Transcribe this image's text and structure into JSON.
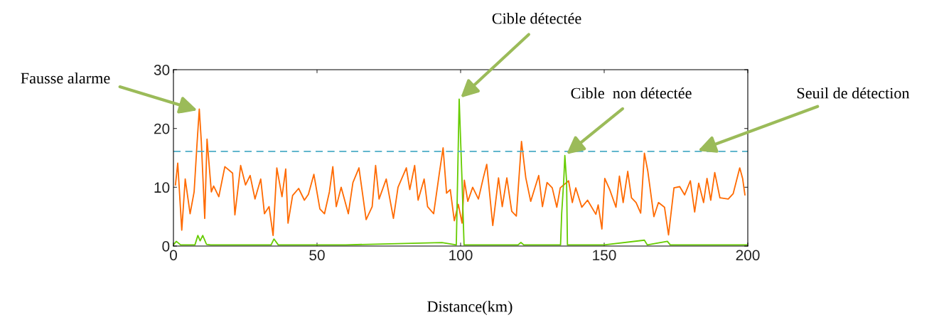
{
  "chart_data": {
    "type": "line",
    "xlabel": "Distance(km)",
    "xlim": [
      0,
      200
    ],
    "xticks": [
      0,
      50,
      100,
      150,
      200
    ],
    "ylim": [
      0,
      30
    ],
    "yticks": [
      0,
      10,
      20,
      30
    ],
    "grid": false,
    "legend": false,
    "line_style": "solid",
    "marker": "none",
    "series": [
      {
        "color": "#ff6a00",
        "x": [
          0.7,
          1.5,
          2.9,
          4.1,
          5.8,
          7.2,
          8.2,
          9.0,
          9.7,
          10.9,
          11.7,
          13.2,
          14.0,
          15.8,
          17.9,
          20.6,
          21.4,
          23.4,
          25.1,
          26.7,
          28.4,
          30.4,
          31.7,
          33.3,
          34.7,
          36.0,
          37.8,
          39.1,
          39.9,
          41.5,
          43.6,
          45.6,
          47.0,
          48.9,
          51.0,
          52.6,
          54.3,
          55.5,
          56.7,
          58.4,
          60.9,
          62.5,
          64.6,
          67.1,
          69.2,
          70.4,
          71.6,
          74.1,
          76.6,
          78.2,
          81.1,
          82.3,
          84.0,
          85.2,
          87.3,
          88.5,
          90.6,
          92.6,
          93.9,
          95.1,
          96.4,
          97.8,
          99.2,
          100.5,
          101.3,
          102.5,
          104.2,
          106.2,
          107.9,
          109.1,
          111.2,
          113.2,
          114.5,
          116.1,
          117.8,
          119.4,
          121.2,
          122.7,
          124.4,
          127.2,
          128.5,
          130.1,
          131.9,
          133.5,
          134.7,
          137.6,
          138.9,
          140.1,
          142.2,
          144.2,
          147.1,
          147.9,
          149.2,
          150.2,
          152.0,
          154.1,
          155.3,
          156.6,
          158.2,
          159.5,
          161.1,
          162.7,
          164.0,
          165.2,
          167.3,
          168.9,
          171.0,
          172.4,
          174.3,
          176.3,
          178.0,
          180.0,
          181.5,
          182.9,
          184.6,
          185.8,
          187.1,
          188.5,
          190.3,
          193.2,
          194.9,
          197.2,
          198.2,
          199.0
        ],
        "values": [
          10.4,
          14.1,
          2.7,
          11.4,
          5.5,
          9.2,
          17.3,
          23.3,
          17.8,
          4.7,
          18.2,
          9.2,
          10.2,
          8.4,
          13.5,
          12.4,
          5.3,
          13.7,
          10.4,
          12.0,
          8.0,
          11.4,
          5.5,
          6.7,
          1.8,
          13.3,
          8.4,
          13.1,
          3.9,
          8.6,
          9.8,
          7.8,
          8.8,
          12.2,
          6.3,
          5.5,
          9.2,
          13.5,
          6.7,
          10.0,
          5.5,
          10.8,
          13.3,
          4.5,
          6.7,
          13.7,
          8.0,
          11.4,
          4.7,
          10.0,
          13.3,
          9.6,
          13.7,
          7.8,
          11.4,
          6.7,
          5.5,
          12.4,
          16.7,
          9.0,
          9.6,
          4.3,
          7.1,
          3.9,
          11.2,
          7.6,
          10.0,
          8.0,
          11.6,
          13.9,
          3.5,
          11.6,
          6.7,
          11.6,
          5.9,
          5.1,
          17.8,
          11.6,
          7.6,
          12.0,
          6.7,
          10.8,
          9.9,
          6.6,
          9.9,
          11.1,
          7.4,
          9.9,
          6.6,
          7.8,
          5.4,
          7.0,
          2.9,
          11.5,
          9.5,
          6.6,
          11.9,
          7.4,
          12.7,
          8.2,
          7.4,
          5.6,
          15.8,
          12.7,
          5.0,
          7.4,
          6.6,
          1.9,
          9.9,
          10.1,
          8.7,
          11.1,
          5.8,
          10.7,
          7.4,
          11.5,
          7.8,
          12.5,
          8.2,
          8.0,
          8.9,
          13.3,
          11.5,
          8.7
        ]
      },
      {
        "color": "#66cc00",
        "x": [
          0,
          1,
          2.5,
          7.5,
          8.5,
          9.3,
          10.2,
          11.5,
          13,
          34,
          35,
          36.5,
          60,
          93.5,
          98.5,
          99.5,
          100.5,
          101.2,
          120,
          121,
          122,
          134.8,
          135.2,
          135.9,
          136.3,
          136.9,
          137.2,
          150,
          164,
          165,
          172,
          173,
          200
        ],
        "values": [
          0.2,
          0.8,
          0.2,
          0.2,
          1.8,
          0.9,
          1.8,
          0.3,
          0.2,
          0.2,
          1.2,
          0.2,
          0.2,
          0.6,
          0.2,
          25,
          11,
          0.2,
          0.2,
          0.6,
          0.2,
          0.2,
          5.6,
          11,
          15.4,
          11,
          0.2,
          0.2,
          1,
          0.2,
          0.8,
          0.2,
          0.2
        ]
      }
    ],
    "ref_lines": [
      {
        "axis": "y",
        "value": 16.1,
        "color": "#4bacc6",
        "line_style": "dashed",
        "label": "Seuil de détection"
      }
    ],
    "annotations": [
      {
        "text": "Fausse alarme",
        "x": 9,
        "y": 23
      },
      {
        "text": "Cible détectée",
        "x": 99.5,
        "y": 25
      },
      {
        "text": "Cible  non détectée",
        "x": 136.3,
        "y": 15.4
      }
    ]
  }
}
